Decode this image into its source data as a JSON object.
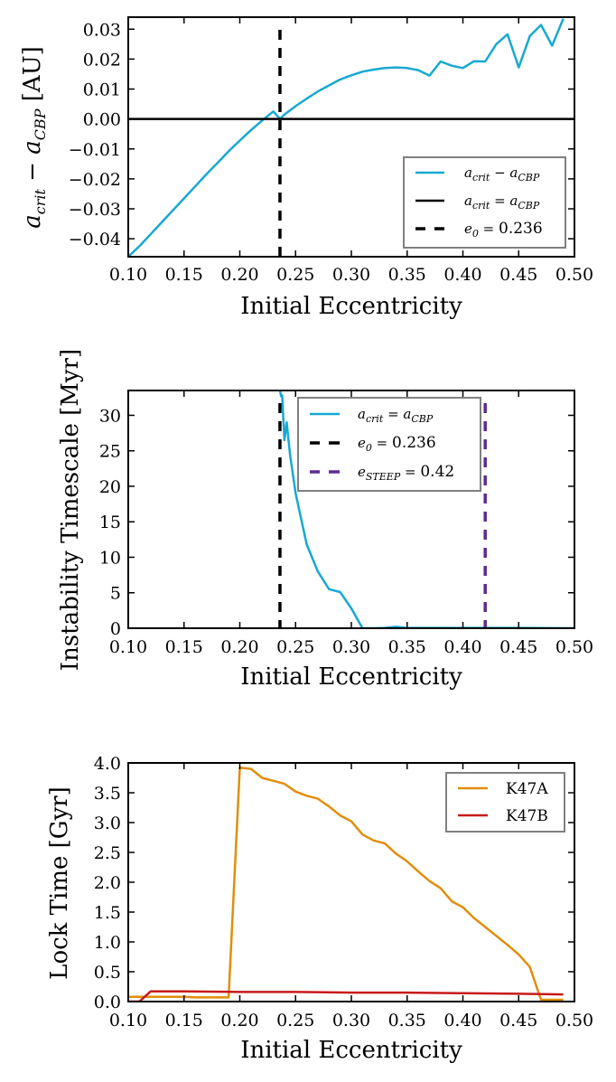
{
  "chart_data": [
    {
      "type": "line",
      "xlabel": "Initial Eccentricity",
      "ylabel": "a_crit − a_CBP [AU]",
      "ylabel_parts": {
        "a": "a",
        "crit": "crit",
        "minus": " − ",
        "cbp": "CBP",
        "unit": " [AU]"
      },
      "xlim": [
        0.1,
        0.5
      ],
      "ylim": [
        -0.046,
        0.034
      ],
      "xticks": [
        "0.10",
        "0.15",
        "0.20",
        "0.25",
        "0.30",
        "0.35",
        "0.40",
        "0.45",
        "0.50"
      ],
      "yticks": [
        "0.03",
        "0.02",
        "0.01",
        "0.00",
        "−0.01",
        "−0.02",
        "−0.03",
        "−0.04"
      ],
      "ytick_values": [
        0.03,
        0.02,
        0.01,
        0.0,
        -0.01,
        -0.02,
        -0.03,
        -0.04
      ],
      "legend_position": "lower-right",
      "series": [
        {
          "name": "a_crit − a_CBP",
          "color": "#17a9d1",
          "style": "solid",
          "x": [
            0.1,
            0.11,
            0.12,
            0.13,
            0.14,
            0.15,
            0.16,
            0.17,
            0.18,
            0.19,
            0.2,
            0.21,
            0.22,
            0.23,
            0.236,
            0.24,
            0.25,
            0.26,
            0.27,
            0.28,
            0.29,
            0.3,
            0.31,
            0.32,
            0.33,
            0.34,
            0.35,
            0.36,
            0.37,
            0.38,
            0.39,
            0.4,
            0.41,
            0.42,
            0.43,
            0.44,
            0.45,
            0.46,
            0.47,
            0.48,
            0.49
          ],
          "y": [
            -0.046,
            -0.0425,
            -0.0385,
            -0.0345,
            -0.0305,
            -0.0265,
            -0.0225,
            -0.0185,
            -0.0147,
            -0.0108,
            -0.0072,
            -0.0037,
            -0.0005,
            0.0025,
            0.0,
            0.0015,
            0.0043,
            0.0068,
            0.0092,
            0.0112,
            0.0132,
            0.0146,
            0.0158,
            0.0165,
            0.017,
            0.0172,
            0.017,
            0.0163,
            0.0145,
            0.0192,
            0.0178,
            0.017,
            0.0193,
            0.0192,
            0.025,
            0.0283,
            0.0172,
            0.0277,
            0.0314,
            0.0245,
            0.0335
          ]
        },
        {
          "name": "a_crit = a_CBP",
          "color": "#000000",
          "style": "hline",
          "value": 0.0
        },
        {
          "name": "e0 = 0.236",
          "color": "#000000",
          "style": "dashed-vline",
          "value": 0.236
        }
      ],
      "legend": [
        {
          "label_a": "a",
          "label_sub1": "crit",
          "label_op": " − ",
          "label_b": "a",
          "label_sub2": "CBP"
        },
        {
          "label_a": "a",
          "label_sub1": "crit",
          "label_op": " = ",
          "label_b": "a",
          "label_sub2": "CBP"
        },
        {
          "label_a": "e",
          "label_sub1": "0",
          "label_op": " = ",
          "label_b": "0.236",
          "label_sub2": ""
        }
      ]
    },
    {
      "type": "line",
      "xlabel": "Initial Eccentricity",
      "ylabel": "Instability Timescale [Myr]",
      "xlim": [
        0.1,
        0.5
      ],
      "ylim": [
        0,
        33.5
      ],
      "xticks": [
        "0.10",
        "0.15",
        "0.20",
        "0.25",
        "0.30",
        "0.35",
        "0.40",
        "0.45",
        "0.50"
      ],
      "yticks": [
        "30",
        "25",
        "20",
        "15",
        "10",
        "5",
        "0"
      ],
      "ytick_values": [
        30,
        25,
        20,
        15,
        10,
        5,
        0
      ],
      "legend_position": "upper-right",
      "series": [
        {
          "name": "a_crit = a_CBP",
          "color": "#17a9d1",
          "style": "solid",
          "x": [
            0.236,
            0.237,
            0.238,
            0.24,
            0.242,
            0.245,
            0.25,
            0.26,
            0.27,
            0.28,
            0.29,
            0.3,
            0.31,
            0.32,
            0.33,
            0.34,
            0.35,
            0.4,
            0.45,
            0.5
          ],
          "y": [
            33.5,
            32.7,
            32.8,
            26.5,
            29.0,
            24.5,
            19.0,
            11.8,
            8.0,
            5.5,
            5.1,
            2.8,
            0.0,
            0.0,
            0.05,
            0.2,
            0.05,
            0.05,
            0.05,
            0.0
          ]
        },
        {
          "name": "e0 = 0.236",
          "color": "#000000",
          "style": "dashed-vline",
          "value": 0.236
        },
        {
          "name": "e_STEEP = 0.42",
          "color": "#5a2d91",
          "style": "dashed-vline",
          "value": 0.42
        }
      ],
      "legend": [
        {
          "label_a": "a",
          "label_sub1": "crit",
          "label_op": " = ",
          "label_b": "a",
          "label_sub2": "CBP"
        },
        {
          "label_a": "e",
          "label_sub1": "0",
          "label_op": " = ",
          "label_b": "0.236",
          "label_sub2": ""
        },
        {
          "label_a": "e",
          "label_sub1": "STEEP",
          "label_op": " = ",
          "label_b": "0.42",
          "label_sub2": ""
        }
      ]
    },
    {
      "type": "line",
      "xlabel": "Initial Eccentricity",
      "ylabel": "Lock Time [Gyr]",
      "xlim": [
        0.1,
        0.5
      ],
      "ylim": [
        0,
        4.0
      ],
      "xticks": [
        "0.10",
        "0.15",
        "0.20",
        "0.25",
        "0.30",
        "0.35",
        "0.40",
        "0.45",
        "0.50"
      ],
      "yticks": [
        "4.0",
        "3.5",
        "3.0",
        "2.5",
        "2.0",
        "1.5",
        "1.0",
        "0.5",
        "0.0"
      ],
      "ytick_values": [
        4.0,
        3.5,
        3.0,
        2.5,
        2.0,
        1.5,
        1.0,
        0.5,
        0.0
      ],
      "legend_position": "upper-right",
      "series": [
        {
          "name": "K47A",
          "color": "#e08e0b",
          "style": "solid",
          "x": [
            0.1,
            0.11,
            0.12,
            0.13,
            0.14,
            0.15,
            0.16,
            0.17,
            0.18,
            0.19,
            0.2,
            0.21,
            0.22,
            0.23,
            0.24,
            0.25,
            0.26,
            0.27,
            0.28,
            0.29,
            0.3,
            0.31,
            0.32,
            0.33,
            0.34,
            0.35,
            0.36,
            0.37,
            0.38,
            0.39,
            0.4,
            0.41,
            0.42,
            0.43,
            0.44,
            0.45,
            0.46,
            0.47,
            0.48,
            0.49
          ],
          "y": [
            0.08,
            0.08,
            0.08,
            0.08,
            0.08,
            0.08,
            0.07,
            0.07,
            0.07,
            0.07,
            3.92,
            3.9,
            3.75,
            3.7,
            3.65,
            3.52,
            3.45,
            3.4,
            3.27,
            3.12,
            3.02,
            2.8,
            2.7,
            2.65,
            2.48,
            2.35,
            2.18,
            2.02,
            1.9,
            1.68,
            1.58,
            1.4,
            1.25,
            1.1,
            0.95,
            0.79,
            0.58,
            0.03,
            0.03,
            0.03
          ]
        },
        {
          "name": "K47B",
          "color": "#c81a1a",
          "style": "solid",
          "x": [
            0.1,
            0.11,
            0.12,
            0.13,
            0.15,
            0.2,
            0.25,
            0.3,
            0.35,
            0.4,
            0.45,
            0.49
          ],
          "y": [
            0.0,
            0.0,
            0.17,
            0.17,
            0.17,
            0.16,
            0.16,
            0.15,
            0.15,
            0.14,
            0.13,
            0.12
          ]
        }
      ],
      "legend": [
        {
          "label": "K47A"
        },
        {
          "label": "K47B"
        }
      ]
    }
  ]
}
